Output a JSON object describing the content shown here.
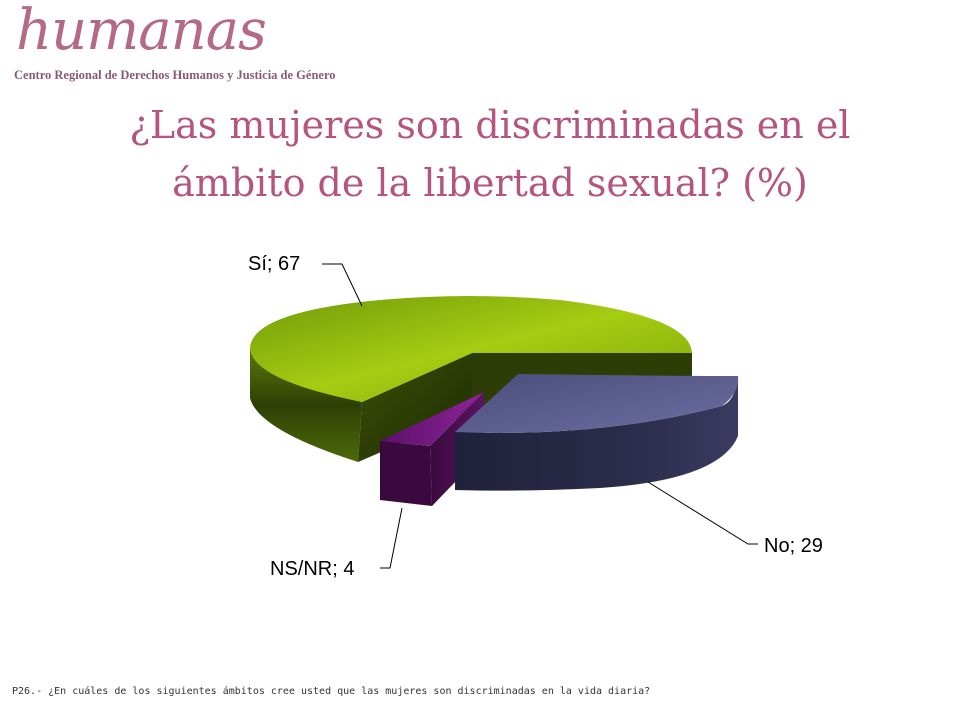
{
  "logo": {
    "name": "humanas",
    "subtitle": "Centro Regional de Derechos Humanos y Justicia de Género"
  },
  "title": {
    "line1": "¿Las mujeres son discriminadas en el",
    "line2": "ámbito de la libertad sexual? (%)"
  },
  "chart_data": {
    "type": "pie",
    "title": "¿Las mujeres son discriminadas en el ámbito de la libertad sexual? (%)",
    "slices": [
      {
        "label": "Sí",
        "value": 67,
        "display": "Sí; 67",
        "color": "#8fba0c"
      },
      {
        "label": "No",
        "value": 29,
        "display": "No; 29",
        "color": "#5b5d8e"
      },
      {
        "label": "NS/NR",
        "value": 4,
        "display": "NS/NR; 4",
        "color": "#7a1f86"
      }
    ],
    "style": "3d-exploded",
    "legend": "none"
  },
  "footnote": "P26.- ¿En cuáles de los siguientes ámbitos cree usted que las mujeres son discriminadas en la vida diaria?"
}
